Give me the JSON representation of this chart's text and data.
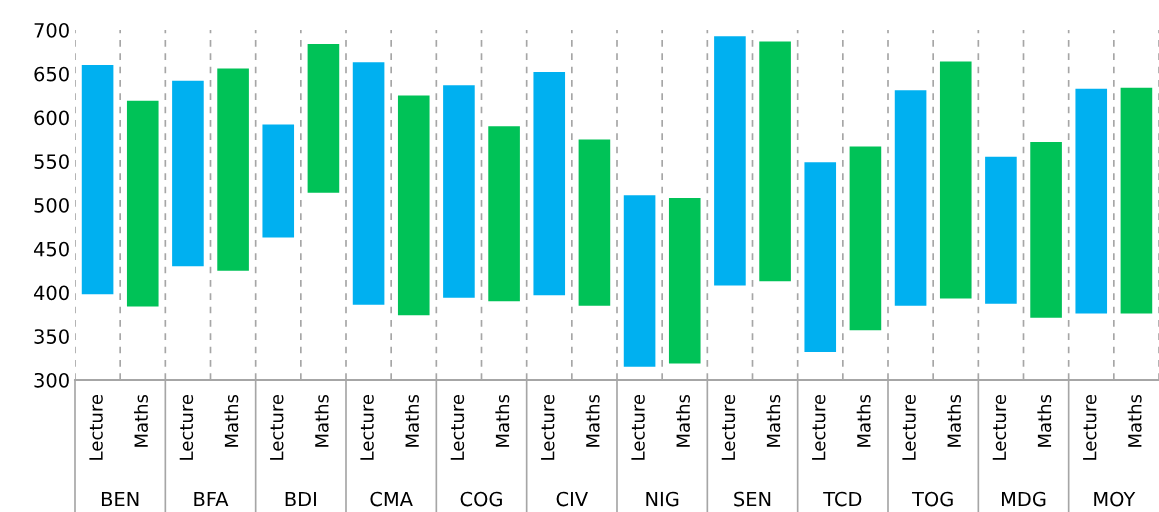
{
  "chart_data": {
    "type": "bar",
    "categories": [
      "BEN",
      "BFA",
      "BDI",
      "CMA",
      "COG",
      "CIV",
      "NIG",
      "SEN",
      "TCD",
      "TOG",
      "MDG",
      "MOY"
    ],
    "series": [
      {
        "name": "Lecture",
        "color": "#00b0f0",
        "base": [
          398,
          430,
          463,
          386,
          394,
          397,
          315,
          408,
          332,
          385,
          387,
          376
        ],
        "values": [
          262,
          212,
          129,
          277,
          243,
          255,
          196,
          285,
          217,
          246,
          168,
          257
        ]
      },
      {
        "name": "Maths",
        "color": "#00c257",
        "base": [
          384,
          425,
          514,
          374,
          390,
          385,
          319,
          413,
          357,
          393,
          371,
          376
        ],
        "values": [
          235,
          231,
          170,
          251,
          200,
          190,
          189,
          274,
          210,
          271,
          201,
          258
        ]
      }
    ],
    "ylim": [
      300,
      700
    ],
    "yticks": [
      300,
      350,
      400,
      450,
      500,
      550,
      600,
      650,
      700
    ],
    "grid": "x",
    "legend": false
  }
}
